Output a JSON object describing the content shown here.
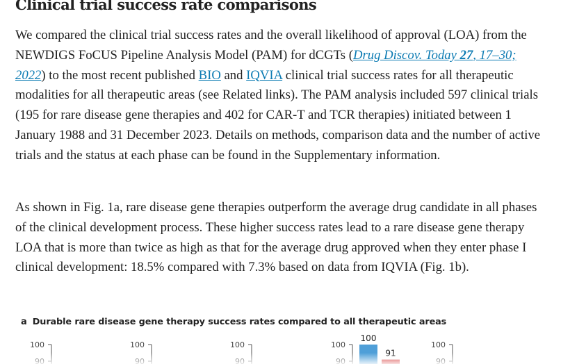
{
  "article": {
    "section_title": "Clinical trial success rate comparisons",
    "p1": {
      "t1": "We compared the clinical trial success rates and the overall likelihood of approval (LOA) from the NEWDIGS FoCUS Pipeline Analysis Model (PAM) for dCGTs (",
      "ref_journal": "Drug Discov. Today",
      "ref_volume": "27",
      "ref_pages_year": ", 17–30; 2022",
      "t2": ") to the most recent published ",
      "link_bio": "BIO",
      "t3": " and ",
      "link_iqvia": "IQVIA",
      "t4": " clinical trial success rates for all therapeutic modalities for all therapeutic areas (see Related links). The PAM analysis included 597 clinical trials (195 for rare disease gene therapies and 402 for CAR-T and TCR therapies) initiated between 1 January 1988 and 31 December 2023. Details on methods, comparison data and the number of active trials and the status at each phase can be found in the Supplementary information."
    },
    "p2": "As shown in Fig. 1a, rare disease gene therapies outperform the average drug candidate in all phases of the clinical development process. These higher success rates lead to a rare disease gene therapy LOA that is more than twice as high as that for the average drug approved when they enter phase I clinical development: 18.5% compared with 7.3% based on data from IQVIA (Fig. 1b)."
  },
  "figure": {
    "panel_letter": "a",
    "panel_title": "Durable rare disease gene therapy success rates compared to all therapeutic areas"
  },
  "chart_data": {
    "type": "bar",
    "title": "Durable rare disease gene therapy success rates compared to all therapeutic areas",
    "panels_visible": 5,
    "y_tick_labels": [
      "100",
      "90"
    ],
    "ylim_visible": [
      90,
      100
    ],
    "series": [
      {
        "color": "#4f9fd8",
        "values": [
          null,
          null,
          null,
          100,
          null
        ]
      },
      {
        "color": "#d42e2e",
        "values": [
          null,
          null,
          null,
          91,
          null
        ]
      }
    ],
    "data_labels": [
      "100",
      "91"
    ],
    "colors": {
      "gene_therapy": "#4f9fd8",
      "comparison": "#d42e2e",
      "axis": "#555555"
    }
  }
}
